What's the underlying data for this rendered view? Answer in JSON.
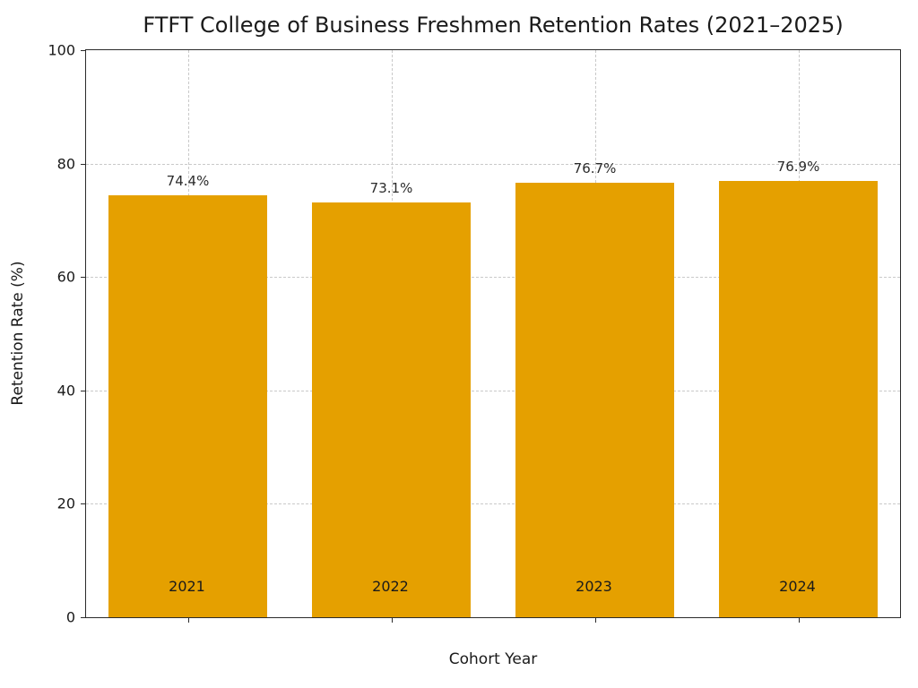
{
  "chart_data": {
    "type": "bar",
    "title": "FTFT College of Business Freshmen Retention Rates (2021–2025)",
    "xlabel": "Cohort Year",
    "ylabel": "Retention Rate (%)",
    "categories": [
      "2021",
      "2022",
      "2023",
      "2024"
    ],
    "values": [
      74.4,
      73.1,
      76.7,
      76.9
    ],
    "value_labels": [
      "74.4%",
      "73.1%",
      "76.7%",
      "76.9%"
    ],
    "ylim": [
      0,
      100
    ],
    "yticks": [
      0,
      20,
      40,
      60,
      80,
      100
    ],
    "bar_color": "#E5A000",
    "bar_width_fraction": 0.78,
    "grid": "dashed",
    "grid_color": "#c9c9c9",
    "legend": "none"
  }
}
